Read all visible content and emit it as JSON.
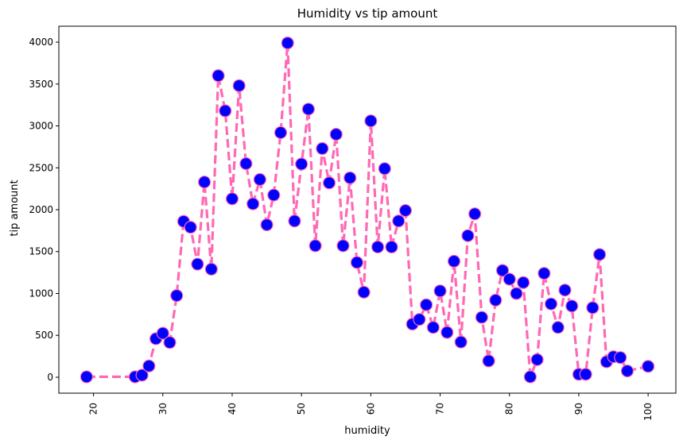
{
  "chart_data": {
    "type": "line",
    "title": "Humidity vs tip amount",
    "xlabel": "humidity",
    "ylabel": "tip amount",
    "xlim": [
      15,
      104
    ],
    "ylim": [
      -190,
      4190
    ],
    "xticks": [
      20,
      30,
      40,
      50,
      60,
      70,
      80,
      90,
      100
    ],
    "yticks": [
      0,
      500,
      1000,
      1500,
      2000,
      2500,
      3000,
      3500,
      4000
    ],
    "grid": false,
    "legend": "none",
    "line_color": "#ff69b4",
    "line_style": "dashed",
    "marker_fill": "#0000ff",
    "marker_edge": "#ff69b4",
    "series": [
      {
        "x": [
          19,
          26,
          27,
          28,
          29,
          30,
          31,
          32,
          33,
          34,
          35,
          36,
          37,
          38,
          39,
          40,
          41,
          42,
          43,
          44,
          45,
          46,
          47,
          48,
          49,
          50,
          51,
          52,
          53,
          54,
          55,
          56,
          57,
          58,
          59,
          60,
          61,
          62,
          63,
          64,
          65,
          66,
          67,
          68,
          69,
          70,
          71,
          72,
          73,
          74,
          75,
          76,
          77,
          78,
          79,
          80,
          81,
          82,
          83,
          84,
          85,
          86,
          87,
          88,
          89,
          90,
          91,
          92,
          93,
          94,
          95,
          96,
          97,
          100
        ],
        "y": [
          5,
          5,
          25,
          135,
          460,
          525,
          415,
          975,
          1860,
          1790,
          1350,
          2330,
          1290,
          3600,
          3180,
          2130,
          3480,
          2550,
          2070,
          2360,
          1820,
          2175,
          2920,
          3990,
          1865,
          2545,
          3200,
          1570,
          2730,
          2320,
          2900,
          1570,
          2380,
          1370,
          1015,
          3060,
          1555,
          2490,
          1555,
          1865,
          1990,
          635,
          690,
          865,
          595,
          1030,
          535,
          1385,
          420,
          1690,
          1950,
          715,
          195,
          920,
          1275,
          1170,
          1000,
          1130,
          5,
          210,
          1240,
          875,
          595,
          1040,
          850,
          35,
          35,
          830,
          1465,
          185,
          245,
          235,
          75,
          130
        ]
      }
    ]
  }
}
